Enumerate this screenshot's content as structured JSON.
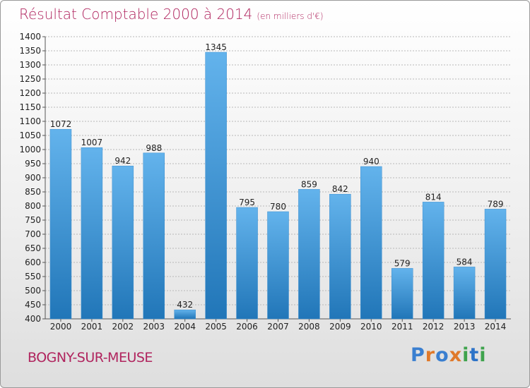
{
  "title": "Résultat Comptable 2000 à 2014",
  "subtitle": "(en milliers d'€)",
  "place": "BOGNY-SUR-MEUSE",
  "logo": {
    "text": "Proxiti",
    "letter_colors": [
      "#3a7fd0",
      "#e0792a",
      "#3a7fd0",
      "#e0792a",
      "#3fa34d",
      "#2d73c8",
      "#3fa34d"
    ]
  },
  "colors": {
    "title": "#b0245e",
    "bar_top": "#63b3ec",
    "bar_bottom": "#2176b8",
    "grid": "#b8b8b8"
  },
  "chart_data": {
    "type": "bar",
    "title": "Résultat Comptable 2000 à 2014",
    "subtitle": "(en milliers d'€)",
    "categories": [
      "2000",
      "2001",
      "2002",
      "2003",
      "2004",
      "2005",
      "2006",
      "2007",
      "2008",
      "2009",
      "2010",
      "2011",
      "2012",
      "2013",
      "2014"
    ],
    "values": [
      1072,
      1007,
      942,
      988,
      432,
      1345,
      795,
      780,
      859,
      842,
      940,
      579,
      814,
      584,
      789
    ],
    "ylim": [
      400,
      1400
    ],
    "yticks": [
      400,
      450,
      500,
      550,
      600,
      650,
      700,
      750,
      800,
      850,
      900,
      950,
      1000,
      1050,
      1100,
      1150,
      1200,
      1250,
      1300,
      1350,
      1400
    ],
    "grid": true,
    "data_labels": true
  }
}
